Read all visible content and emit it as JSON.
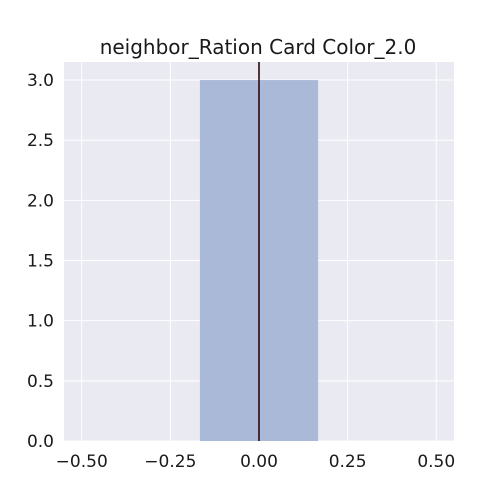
{
  "chart_data": {
    "type": "bar",
    "title": "neighbor_Ration Card Color_2.0",
    "xlabel": "",
    "ylabel": "",
    "bars": [
      {
        "x_start": -0.1667,
        "x_end": 0.1667,
        "value": 3
      }
    ],
    "vline_x": 0.0,
    "xlim": [
      -0.55,
      0.55
    ],
    "ylim": [
      0,
      3.15
    ],
    "x_ticks": [
      -0.5,
      -0.25,
      0.0,
      0.25,
      0.5
    ],
    "x_tick_labels": [
      "−0.50",
      "−0.25",
      "0.00",
      "0.25",
      "0.50"
    ],
    "y_ticks": [
      0,
      0.5,
      1.0,
      1.5,
      2.0,
      2.5,
      3.0
    ],
    "y_tick_labels": [
      "0.0",
      "0.5",
      "1.0",
      "1.5",
      "2.0",
      "2.5",
      "3.0"
    ],
    "grid": true,
    "colors": {
      "background": "#eaeaf2",
      "grid": "#ffffff",
      "bar": "#aab9d8",
      "vline": "#2a0a0a"
    }
  }
}
